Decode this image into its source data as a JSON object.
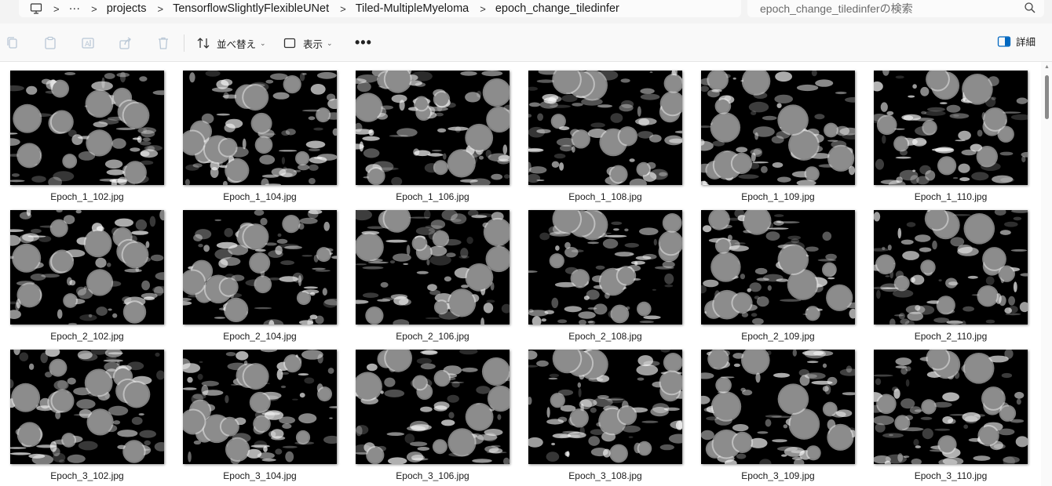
{
  "address_bar": {
    "crumbs": [
      "projects",
      "TensorflowSlightlyFlexibleUNet",
      "Tiled-MultipleMyeloma",
      "epoch_change_tiledinfer"
    ],
    "overflow": "···",
    "search_placeholder": "epoch_change_tiledinferの検索"
  },
  "command_bar": {
    "sort_label": "並べ替え",
    "view_label": "表示",
    "more_label": "•••",
    "details_label": "詳細"
  },
  "files": [
    {
      "name": "Epoch_1_102.jpg"
    },
    {
      "name": "Epoch_1_104.jpg"
    },
    {
      "name": "Epoch_1_106.jpg"
    },
    {
      "name": "Epoch_1_108.jpg"
    },
    {
      "name": "Epoch_1_109.jpg"
    },
    {
      "name": "Epoch_1_110.jpg"
    },
    {
      "name": "Epoch_2_102.jpg"
    },
    {
      "name": "Epoch_2_104.jpg"
    },
    {
      "name": "Epoch_2_106.jpg"
    },
    {
      "name": "Epoch_2_108.jpg"
    },
    {
      "name": "Epoch_2_109.jpg"
    },
    {
      "name": "Epoch_2_110.jpg"
    },
    {
      "name": "Epoch_3_102.jpg"
    },
    {
      "name": "Epoch_3_104.jpg"
    },
    {
      "name": "Epoch_3_106.jpg"
    },
    {
      "name": "Epoch_3_108.jpg"
    },
    {
      "name": "Epoch_3_109.jpg"
    },
    {
      "name": "Epoch_3_110.jpg"
    }
  ],
  "colors": {
    "accent": "#0067c0",
    "thumb_background": "#000000",
    "cell_mask": "#8c8c8c"
  }
}
